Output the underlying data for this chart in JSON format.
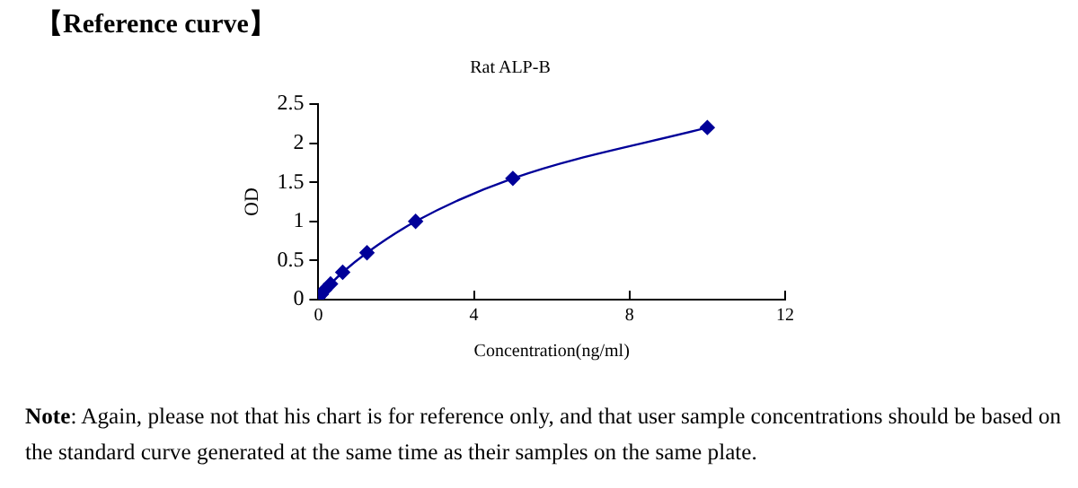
{
  "chart_data": {
    "type": "line",
    "title": "【Reference curve】",
    "subtitle": "Rat ALP-B",
    "xlabel": "Concentration(ng/ml)",
    "ylabel": "OD",
    "series": [
      {
        "color": "#000099",
        "x": [
          0,
          0.078,
          0.156,
          0.3125,
          0.625,
          1.25,
          2.5,
          5,
          10
        ],
        "values": [
          0.03,
          0.07,
          0.12,
          0.2,
          0.35,
          0.6,
          1.0,
          1.55,
          2.2
        ]
      }
    ],
    "xlim": [
      0,
      12
    ],
    "xticks": [
      0,
      4,
      8,
      12
    ],
    "ylim": [
      0,
      2.5
    ],
    "yticks": [
      0,
      0.5,
      1,
      1.5,
      2,
      2.5
    ],
    "grid": false,
    "legend": false,
    "marker": "diamond",
    "line_style": "solid",
    "annotations": [
      "Note: Again, please not that his chart is for reference only, and that user sample concentrations should be based on the standard curve generated at the same time as their samples on the same plate."
    ]
  }
}
